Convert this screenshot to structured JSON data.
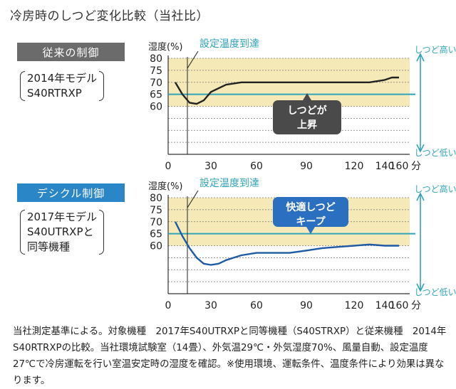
{
  "page_title": "冷房時のしつど変化比較（当社比）",
  "colors": {
    "band": "#f6e9b8",
    "target": "#2fa4b8",
    "arrow": "#2fa4b8",
    "old_line": "#222222",
    "new_line": "#1f5aa6",
    "old_label_bg": "#6b6b6b",
    "new_label_bg": "#2b86c8",
    "badge_old": "#4a4a4a",
    "badge_new": "#2b6fc0"
  },
  "panels": [
    {
      "label": "従来の制御",
      "model_lines": [
        "2014年モデル",
        "S40RTRXP"
      ],
      "badge_lines": [
        "しつどが",
        "上昇"
      ]
    },
    {
      "label": "デシクル制御",
      "model_lines": [
        "2017年モデル",
        "S40UTRXPと",
        "同等機種"
      ],
      "badge_lines": [
        "快適しつど",
        "キープ"
      ]
    }
  ],
  "chart_data": [
    {
      "type": "line",
      "ylabel": "湿度(%)",
      "xunit": "分",
      "x_ticks": [
        0,
        30,
        60,
        90,
        120,
        140,
        160
      ],
      "y_ticks": [
        60,
        65,
        70,
        75,
        80
      ],
      "ylim": [
        40,
        80
      ],
      "comfort_band": [
        60,
        80
      ],
      "target_level": 65,
      "setpoint_x": 20,
      "setpoint_label": "設定温度到達",
      "arrow_top_label": "しつど高い",
      "arrow_bottom_label": "しつど低い",
      "series": [
        {
          "x": [
            5,
            10,
            15,
            20,
            25,
            30,
            40,
            50,
            60,
            70,
            80,
            90,
            100,
            110,
            120,
            130,
            140,
            150,
            160
          ],
          "y": [
            70,
            65,
            61.5,
            61,
            62.5,
            66,
            69,
            70,
            70,
            70,
            70,
            70,
            70,
            70,
            70,
            70,
            71,
            72,
            72
          ]
        }
      ]
    },
    {
      "type": "line",
      "ylabel": "湿度(%)",
      "xunit": "分",
      "x_ticks": [
        0,
        30,
        60,
        90,
        120,
        140,
        160
      ],
      "y_ticks": [
        60,
        65,
        70,
        75,
        80
      ],
      "ylim": [
        40,
        80
      ],
      "comfort_band": [
        60,
        80
      ],
      "target_level": 65,
      "setpoint_x": 20,
      "setpoint_label": "設定温度到達",
      "arrow_top_label": "しつど高い",
      "arrow_bottom_label": "しつど低い",
      "series": [
        {
          "x": [
            5,
            10,
            15,
            20,
            25,
            30,
            35,
            40,
            45,
            50,
            60,
            70,
            80,
            90,
            100,
            110,
            120,
            130,
            140,
            150,
            160
          ],
          "y": [
            70,
            64,
            59,
            55,
            52.5,
            52,
            52.5,
            54,
            55,
            56,
            57,
            57,
            57,
            58,
            59,
            59.5,
            60,
            60.5,
            60,
            60,
            60
          ]
        }
      ]
    }
  ],
  "footnote": "当社測定基準による。対象機種　2017年S40UTRXPと同等機種（S40STRXP）と従来機種　2014年S40RTRXPの比較。当社環境試験室（14畳）、外気温29℃・外気湿度70%、風量自動、設定温度27℃で冷房運転を行い室温安定時の湿度を確認。※使用環境、運転条件、温度条件により効果は異なります。"
}
